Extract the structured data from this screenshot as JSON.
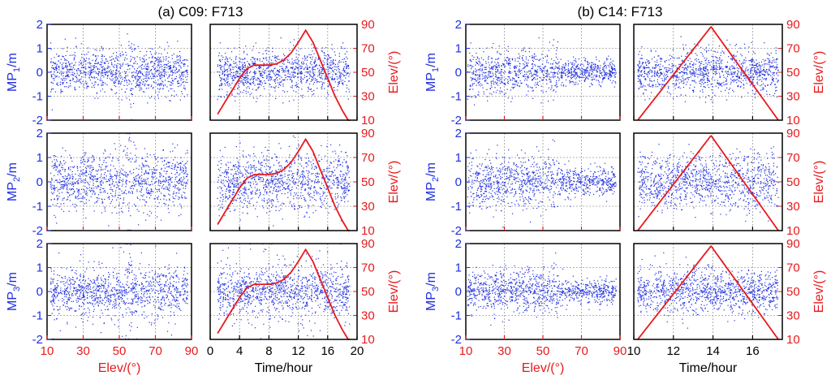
{
  "figure": {
    "group_a_title": "(a) C09: F713",
    "group_b_title": "(b) C14: F713"
  },
  "colors": {
    "mp": "#1f2fe0",
    "elev": "#e8191c",
    "axis": "#000000",
    "grid": "#9a9a9a"
  },
  "chart_data": [
    {
      "id": "a_elev",
      "group": "a",
      "type": "scatter",
      "title": "(a) C09: F713",
      "x_axis": {
        "label": "Elev/(°)",
        "ticks": [
          10,
          30,
          50,
          70,
          90
        ],
        "range": [
          10,
          90
        ]
      },
      "panels": [
        {
          "ylabel_main": "MP",
          "ylabel_sub": "1",
          "ylabel_tail": "/m",
          "yrange": [
            -2,
            2
          ],
          "yticks": [
            -2,
            -1,
            0,
            1,
            2
          ],
          "spread": 0.45,
          "noise": "normal"
        },
        {
          "ylabel_main": "MP",
          "ylabel_sub": "2",
          "ylabel_tail": "/m",
          "yrange": [
            -2,
            2
          ],
          "yticks": [
            -2,
            -1,
            0,
            1,
            2
          ],
          "spread": 0.6,
          "noise": "normal"
        },
        {
          "ylabel_main": "MP",
          "ylabel_sub": "3",
          "ylabel_tail": "/m",
          "yrange": [
            -2,
            2
          ],
          "yticks": [
            -2,
            -1,
            0,
            1,
            2
          ],
          "spread": 0.45,
          "noise": "bursty"
        }
      ],
      "x_extent": [
        12,
        88
      ],
      "dense_elev_band": [
        54,
        57
      ]
    },
    {
      "id": "a_time",
      "group": "a",
      "type": "line",
      "x_axis": {
        "label": "Time/hour",
        "ticks": [
          0,
          4,
          8,
          12,
          16,
          20
        ],
        "range": [
          0,
          20
        ]
      },
      "right_axis": {
        "label": "Elev/(°)",
        "ticks": [
          10,
          30,
          50,
          70,
          90
        ],
        "range": [
          10,
          90
        ]
      },
      "panels": [
        {
          "yrange": [
            -2,
            2
          ],
          "spread": 0.45,
          "noise": "normal"
        },
        {
          "yrange": [
            -2,
            2
          ],
          "spread": 0.6,
          "noise": "normal"
        },
        {
          "yrange": [
            -2,
            2
          ],
          "spread": 0.45,
          "noise": "bursty"
        }
      ],
      "x_extent": [
        1,
        19
      ],
      "elevation_curve": {
        "x": [
          1,
          2,
          3,
          4,
          5,
          6,
          7,
          8,
          9,
          10,
          11,
          12,
          13,
          14,
          15,
          16,
          17,
          18,
          19
        ],
        "y": [
          15,
          25,
          35,
          45,
          53,
          56,
          56,
          56,
          57,
          60,
          66,
          75,
          85,
          75,
          60,
          45,
          30,
          18,
          8
        ]
      }
    },
    {
      "id": "b_elev",
      "group": "b",
      "type": "scatter",
      "title": "(b) C14: F713",
      "x_axis": {
        "label": "Elev/(°)",
        "ticks": [
          10,
          30,
          50,
          70,
          90
        ],
        "range": [
          10,
          90
        ]
      },
      "panels": [
        {
          "ylabel_main": "MP",
          "ylabel_sub": "1",
          "ylabel_tail": "/m",
          "yrange": [
            -2,
            2
          ],
          "yticks": [
            -2,
            -1,
            0,
            1,
            2
          ],
          "spread": 0.45,
          "noise": "decay"
        },
        {
          "ylabel_main": "MP",
          "ylabel_sub": "2",
          "ylabel_tail": "/m",
          "yrange": [
            -2,
            2
          ],
          "yticks": [
            -2,
            -1,
            0,
            1,
            2
          ],
          "spread": 0.55,
          "noise": "decay"
        },
        {
          "ylabel_main": "MP",
          "ylabel_sub": "3",
          "ylabel_tail": "/m",
          "yrange": [
            -2,
            2
          ],
          "yticks": [
            -2,
            -1,
            0,
            1,
            2
          ],
          "spread": 0.45,
          "noise": "decay"
        }
      ],
      "x_extent": [
        11,
        88
      ],
      "dense_elev_band": [
        10,
        58
      ]
    },
    {
      "id": "b_time",
      "group": "b",
      "type": "line",
      "x_axis": {
        "label": "Time/hour",
        "ticks": [
          10,
          12,
          14,
          16
        ],
        "range": [
          10,
          17.5
        ]
      },
      "right_axis": {
        "label": "Elev/(°)",
        "ticks": [
          10,
          30,
          50,
          70,
          90
        ],
        "range": [
          10,
          90
        ]
      },
      "panels": [
        {
          "yrange": [
            -2,
            2
          ],
          "spread": 0.45,
          "noise": "normal"
        },
        {
          "yrange": [
            -2,
            2
          ],
          "spread": 0.55,
          "noise": "normal"
        },
        {
          "yrange": [
            -2,
            2
          ],
          "spread": 0.45,
          "noise": "normal"
        }
      ],
      "x_extent": [
        10.2,
        17.3
      ],
      "elevation_curve": {
        "x": [
          10.2,
          13.9,
          17.3
        ],
        "y": [
          10,
          88,
          10
        ]
      }
    }
  ]
}
